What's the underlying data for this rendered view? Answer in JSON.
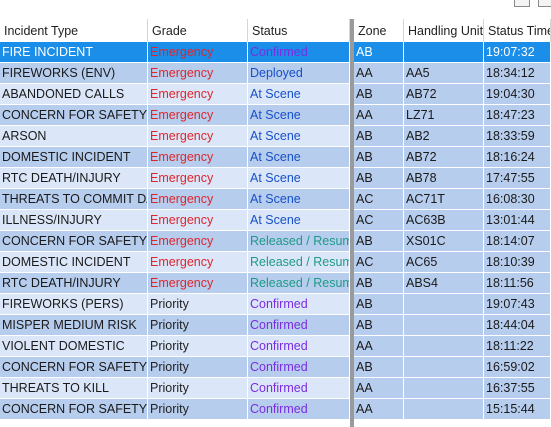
{
  "window": {
    "minimize_label": "",
    "maximize_label": ""
  },
  "colors": {
    "header_bg": "#ffffff",
    "row_a": "#dbe7f9",
    "row_b": "#b7cdee",
    "selected_bg": "#1a8ee8",
    "selected_text": "#ffffff",
    "emergency": "#e0242a",
    "priority": "#222222",
    "confirmed": "#7a2de0",
    "deployed": "#1650c9",
    "at_scene": "#1650c9",
    "released": "#1e9a86"
  },
  "columns": [
    "Incident Type",
    "Grade",
    "Status",
    "Zone",
    "Handling Unit",
    "Status Time"
  ],
  "rows": [
    {
      "type": "FIRE INCIDENT",
      "grade": "Emergency",
      "status": "Confirmed",
      "zone": "AB",
      "unit": "",
      "time": "19:07:32",
      "selected": true
    },
    {
      "type": "FIREWORKS (ENV)",
      "grade": "Emergency",
      "status": "Deployed",
      "zone": "AA",
      "unit": "AA5",
      "time": "18:34:12"
    },
    {
      "type": "ABANDONED CALLS",
      "grade": "Emergency",
      "status": "At Scene",
      "zone": "AB",
      "unit": "AB72",
      "time": "19:04:30"
    },
    {
      "type": "CONCERN FOR SAFETY",
      "grade": "Emergency",
      "status": "At Scene",
      "zone": "AA",
      "unit": "LZ71",
      "time": "18:47:23"
    },
    {
      "type": "ARSON",
      "grade": "Emergency",
      "status": "At Scene",
      "zone": "AB",
      "unit": "AB2",
      "time": "18:33:59"
    },
    {
      "type": "DOMESTIC INCIDENT",
      "grade": "Emergency",
      "status": "At Scene",
      "zone": "AB",
      "unit": "AB72",
      "time": "18:16:24"
    },
    {
      "type": "RTC DEATH/INJURY",
      "grade": "Emergency",
      "status": "At Scene",
      "zone": "AB",
      "unit": "AB78",
      "time": "17:47:55"
    },
    {
      "type": "THREATS TO COMMIT DAM",
      "grade": "Emergency",
      "status": "At Scene",
      "zone": "AC",
      "unit": "AC71T",
      "time": "16:08:30"
    },
    {
      "type": "ILLNESS/INJURY",
      "grade": "Emergency",
      "status": "At Scene",
      "zone": "AC",
      "unit": "AC63B",
      "time": "13:01:44"
    },
    {
      "type": "CONCERN FOR SAFETY",
      "grade": "Emergency",
      "status": "Released / Resume",
      "zone": "AB",
      "unit": "XS01C",
      "time": "18:14:07"
    },
    {
      "type": "DOMESTIC INCIDENT",
      "grade": "Emergency",
      "status": "Released / Resume",
      "zone": "AC",
      "unit": "AC65",
      "time": "18:10:39"
    },
    {
      "type": "RTC DEATH/INJURY",
      "grade": "Emergency",
      "status": "Released / Resume",
      "zone": "AB",
      "unit": "ABS4",
      "time": "18:11:56"
    },
    {
      "type": "FIREWORKS (PERS)",
      "grade": "Priority",
      "status": "Confirmed",
      "zone": "AB",
      "unit": "",
      "time": "19:07:43"
    },
    {
      "type": "MISPER MEDIUM RISK",
      "grade": "Priority",
      "status": "Confirmed",
      "zone": "AB",
      "unit": "",
      "time": "18:44:04"
    },
    {
      "type": "VIOLENT DOMESTIC",
      "grade": "Priority",
      "status": "Confirmed",
      "zone": "AA",
      "unit": "",
      "time": "18:11:22"
    },
    {
      "type": "CONCERN FOR SAFETY",
      "grade": "Priority",
      "status": "Confirmed",
      "zone": "AB",
      "unit": "",
      "time": "16:59:02"
    },
    {
      "type": "THREATS TO KILL",
      "grade": "Priority",
      "status": "Confirmed",
      "zone": "AA",
      "unit": "",
      "time": "16:37:55"
    },
    {
      "type": "CONCERN FOR SAFETY",
      "grade": "Priority",
      "status": "Confirmed",
      "zone": "AA",
      "unit": "",
      "time": "15:15:44"
    }
  ]
}
